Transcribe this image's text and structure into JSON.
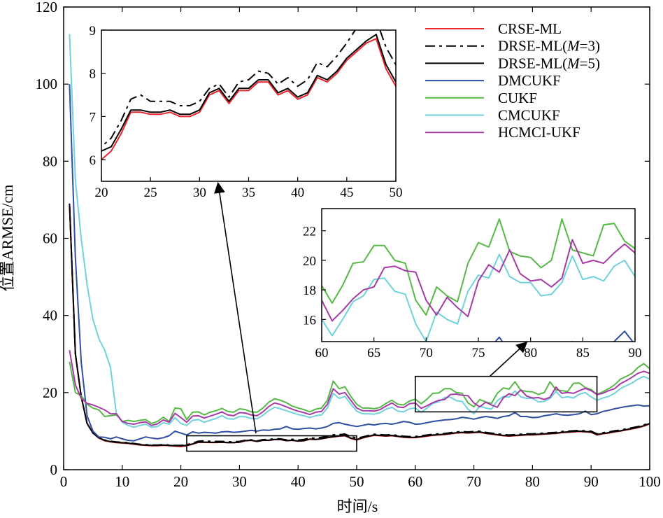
{
  "chart_data": {
    "type": "line",
    "xlabel": "时间/s",
    "ylabel": "位置ARMSE/cm",
    "xlim": [
      0,
      100
    ],
    "ylim": [
      0,
      120
    ],
    "xticks": [
      "0",
      "10",
      "20",
      "30",
      "40",
      "50",
      "60",
      "70",
      "80",
      "90",
      "100"
    ],
    "yticks": [
      "0",
      "20",
      "40",
      "60",
      "80",
      "100",
      "120"
    ],
    "grid": false,
    "legend_position": "top-right",
    "x": [
      1,
      2,
      3,
      4,
      5,
      6,
      7,
      8,
      9,
      10,
      11,
      12,
      13,
      14,
      15,
      16,
      17,
      18,
      19,
      20,
      21,
      22,
      23,
      24,
      25,
      26,
      27,
      28,
      29,
      30,
      31,
      32,
      33,
      34,
      35,
      36,
      37,
      38,
      39,
      40,
      41,
      42,
      43,
      44,
      45,
      46,
      47,
      48,
      49,
      50,
      51,
      52,
      53,
      54,
      55,
      56,
      57,
      58,
      59,
      60,
      61,
      62,
      63,
      64,
      65,
      66,
      67,
      68,
      69,
      70,
      71,
      72,
      73,
      74,
      75,
      76,
      77,
      78,
      79,
      80,
      81,
      82,
      83,
      84,
      85,
      86,
      87,
      88,
      89,
      90,
      91,
      92,
      93,
      94,
      95,
      96,
      97,
      98,
      99,
      100
    ],
    "series": [
      {
        "name": "CRSE-ML",
        "legend_label": "CRSE-ML",
        "color": "#e8262c",
        "dash": "solid",
        "values": [
          69,
          30,
          19,
          12,
          9.5,
          8.2,
          7.5,
          7.2,
          7.0,
          6.9,
          6.8,
          6.6,
          6.4,
          6.3,
          6.2,
          6.2,
          6.3,
          6.2,
          6.1,
          6.0,
          6.2,
          6.6,
          7.1,
          7.1,
          7.05,
          7.05,
          7.1,
          7.0,
          7.0,
          7.1,
          7.5,
          7.6,
          7.3,
          7.6,
          7.6,
          7.8,
          7.8,
          7.5,
          7.6,
          7.4,
          7.5,
          7.9,
          7.8,
          8.0,
          8.3,
          8.5,
          8.7,
          8.8,
          8.1,
          7.7,
          8.2,
          8.6,
          8.9,
          8.8,
          8.7,
          8.8,
          8.6,
          8.4,
          8.3,
          8.3,
          8.5,
          8.7,
          8.9,
          9.0,
          9.1,
          9.3,
          9.5,
          9.6,
          9.5,
          9.6,
          9.7,
          9.4,
          9.2,
          9.0,
          8.8,
          8.7,
          8.8,
          8.9,
          9.0,
          9.0,
          9.1,
          9.2,
          9.3,
          9.4,
          9.6,
          9.7,
          9.8,
          9.9,
          9.8,
          9.7,
          9.0,
          9.3,
          9.5,
          9.8,
          10.0,
          10.3,
          10.6,
          10.9,
          11.3,
          11.9
        ]
      },
      {
        "name": "DRSE-ML(M=3)",
        "legend_label": "DRSE-ML(",
        "legend_italic": "M",
        "legend_suffix": "=3)",
        "color": "#000000",
        "dash": "14,6,4,6",
        "values": [
          69,
          30,
          19,
          12,
          9.6,
          8.4,
          7.7,
          7.4,
          7.2,
          7.1,
          7.0,
          6.8,
          6.6,
          6.5,
          6.4,
          6.4,
          6.5,
          6.4,
          6.3,
          6.3,
          6.5,
          6.9,
          7.4,
          7.5,
          7.35,
          7.35,
          7.35,
          7.25,
          7.25,
          7.35,
          7.65,
          7.75,
          7.45,
          7.8,
          7.85,
          8.05,
          8.0,
          7.75,
          7.9,
          7.7,
          7.85,
          8.25,
          8.15,
          8.4,
          8.7,
          9.05,
          9.1,
          9.25,
          8.6,
          8.2,
          8.5,
          8.9,
          9.2,
          9.1,
          9.0,
          9.1,
          8.9,
          8.7,
          8.6,
          8.6,
          8.8,
          9.0,
          9.2,
          9.3,
          9.4,
          9.6,
          9.8,
          9.9,
          9.8,
          9.9,
          10.0,
          9.7,
          9.5,
          9.3,
          9.1,
          9.0,
          9.1,
          9.2,
          9.3,
          9.3,
          9.4,
          9.5,
          9.6,
          9.7,
          9.9,
          10.0,
          10.1,
          10.2,
          10.1,
          10.0,
          9.3,
          9.6,
          9.8,
          10.1,
          10.3,
          10.6,
          10.9,
          11.2,
          11.6,
          12.2
        ]
      },
      {
        "name": "DRSE-ML(M=5)",
        "legend_label": "DRSE-ML(",
        "legend_italic": "M",
        "legend_suffix": "=5)",
        "color": "#000000",
        "dash": "solid",
        "values": [
          69,
          30,
          19,
          12,
          9.5,
          8.3,
          7.6,
          7.3,
          7.1,
          7.0,
          6.9,
          6.7,
          6.5,
          6.4,
          6.3,
          6.3,
          6.4,
          6.3,
          6.2,
          6.2,
          6.3,
          6.7,
          7.15,
          7.15,
          7.1,
          7.1,
          7.15,
          7.05,
          7.05,
          7.15,
          7.55,
          7.65,
          7.35,
          7.65,
          7.65,
          7.85,
          7.85,
          7.55,
          7.65,
          7.45,
          7.55,
          7.95,
          7.85,
          8.05,
          8.35,
          8.55,
          8.75,
          8.9,
          8.2,
          7.8,
          8.3,
          8.7,
          9.0,
          8.9,
          8.8,
          8.9,
          8.7,
          8.5,
          8.4,
          8.4,
          8.6,
          8.8,
          9.0,
          9.1,
          9.2,
          9.4,
          9.6,
          9.7,
          9.6,
          9.7,
          9.8,
          9.5,
          9.3,
          9.1,
          8.9,
          8.8,
          8.9,
          9.0,
          9.1,
          9.1,
          9.2,
          9.3,
          9.4,
          9.5,
          9.7,
          9.8,
          9.9,
          10.0,
          9.9,
          9.8,
          9.1,
          9.4,
          9.6,
          9.9,
          10.1,
          10.4,
          10.7,
          11.0,
          11.4,
          12.0
        ]
      },
      {
        "name": "DMCUKF",
        "legend_label": "DMCUKF",
        "color": "#2e4ea1",
        "dash": "solid",
        "values": [
          100,
          55,
          28,
          14,
          10,
          8.5,
          8.4,
          8.0,
          8.5,
          8.0,
          7.6,
          7.5,
          8.0,
          8.5,
          8.2,
          8.0,
          8.3,
          8.8,
          10.0,
          9.5,
          9.0,
          9.8,
          9.5,
          9.7,
          9.6,
          9.5,
          9.8,
          9.9,
          9.7,
          9.8,
          10.0,
          10.2,
          10.0,
          10.3,
          10.2,
          10.5,
          10.6,
          11.2,
          10.6,
          10.5,
          10.7,
          10.8,
          10.6,
          10.8,
          11.2,
          12.0,
          12.2,
          11.8,
          11.5,
          11.2,
          11.5,
          11.8,
          11.6,
          11.9,
          12.0,
          11.8,
          12.1,
          12.5,
          12.3,
          11.8,
          11.9,
          12.2,
          12.5,
          12.7,
          12.9,
          13.0,
          13.2,
          13.6,
          13.4,
          13.1,
          13.5,
          13.8,
          13.6,
          13.3,
          13.8,
          14.0,
          14.8,
          13.8,
          13.8,
          13.5,
          13.6,
          14.0,
          14.2,
          14.5,
          14.2,
          14.1,
          14.3,
          14.5,
          15.2,
          14.3,
          14.5,
          15.1,
          15.4,
          15.8,
          16.1,
          16.4,
          16.6,
          16.8,
          16.5,
          16.6
        ]
      },
      {
        "name": "CUKF",
        "legend_label": "CUKF",
        "color": "#56b846",
        "dash": "solid",
        "values": [
          28,
          20,
          19.2,
          17,
          16,
          15.5,
          13.8,
          14.0,
          14.2,
          12.5,
          12.8,
          12.5,
          12.8,
          13.0,
          12.0,
          12.5,
          13.6,
          12.5,
          16.0,
          15.8,
          13.0,
          14.9,
          15.0,
          14.2,
          14.9,
          15.3,
          15.9,
          15.1,
          14.9,
          15.8,
          15.6,
          15.0,
          14.9,
          16.0,
          17.5,
          18.4,
          18.0,
          17.4,
          16.5,
          16.0,
          15.6,
          15.0,
          15.7,
          16.0,
          18.0,
          23.0,
          21.0,
          21.5,
          19.0,
          17.0,
          16.0,
          16.0,
          15.8,
          16.2,
          17.2,
          18.0,
          17.0,
          16.8,
          17.8,
          18.3,
          17.1,
          18.3,
          19.8,
          19.9,
          21.0,
          21.0,
          20.0,
          19.8,
          17.3,
          16.3,
          18.2,
          17.6,
          17.2,
          19.8,
          21.2,
          20.9,
          22.8,
          20.6,
          20.3,
          20.2,
          19.5,
          20.0,
          22.8,
          20.7,
          20.5,
          20.3,
          22.4,
          22.5,
          21.3,
          20.8,
          19.5,
          20.2,
          21.0,
          22.0,
          23.5,
          24.2,
          25.0,
          26.5,
          27.5,
          26.2
        ]
      },
      {
        "name": "CMCUKF",
        "legend_label": "CMCUKF",
        "color": "#6fd2dd",
        "dash": "solid",
        "values": [
          113,
          75,
          60,
          48,
          39,
          34,
          31,
          26.5,
          14.5,
          12.3,
          11.5,
          11.0,
          11.5,
          11.8,
          11.0,
          11.2,
          12.2,
          11.8,
          13.5,
          12.0,
          11.5,
          12.8,
          13.0,
          12.3,
          12.8,
          13.3,
          14.0,
          13.2,
          13.1,
          13.8,
          13.7,
          13.3,
          13.2,
          14.1,
          15.3,
          16.2,
          15.8,
          15.3,
          14.8,
          14.3,
          14.0,
          13.5,
          14.0,
          14.2,
          16.0,
          19.8,
          18.5,
          19.0,
          17.0,
          15.2,
          14.5,
          14.5,
          14.4,
          14.8,
          15.7,
          16.2,
          15.2,
          15.0,
          15.8,
          16.0,
          14.9,
          16.0,
          17.2,
          17.6,
          18.7,
          18.8,
          17.9,
          17.7,
          15.7,
          14.5,
          16.5,
          16.0,
          15.7,
          17.9,
          19.0,
          18.8,
          20.4,
          18.9,
          18.5,
          18.5,
          17.6,
          17.7,
          18.5,
          20.3,
          18.7,
          18.9,
          18.6,
          19.6,
          20.0,
          18.9,
          18.0,
          18.6,
          19.0,
          19.8,
          21.0,
          21.8,
          22.5,
          23.5,
          24.2,
          23.5
        ]
      },
      {
        "name": "HCMCI-UKF",
        "legend_label": "HCMCI-UKF",
        "color": "#a63ba8",
        "dash": "solid",
        "values": [
          31,
          22,
          18.5,
          17.2,
          16.8,
          16.2,
          15.5,
          14.5,
          14.5,
          12.5,
          12.0,
          11.8,
          12.2,
          12.4,
          11.5,
          11.9,
          12.9,
          12.3,
          14.6,
          13.5,
          12.3,
          13.9,
          14.0,
          13.4,
          13.9,
          14.4,
          15.0,
          14.2,
          14.0,
          14.8,
          14.7,
          14.2,
          14.0,
          15.0,
          16.4,
          17.3,
          16.9,
          16.3,
          15.7,
          15.2,
          14.8,
          14.3,
          14.9,
          15.1,
          17.0,
          21.0,
          19.6,
          20.0,
          18.0,
          16.0,
          15.3,
          15.3,
          15.2,
          15.6,
          16.5,
          17.3,
          16.3,
          16.1,
          17.1,
          17.3,
          15.9,
          16.6,
          17.4,
          18.0,
          18.2,
          19.5,
          19.6,
          19.3,
          19.2,
          17.3,
          16.3,
          17.5,
          16.8,
          16.2,
          18.6,
          19.7,
          19.2,
          20.7,
          19.1,
          18.6,
          18.7,
          18.2,
          18.8,
          21.4,
          19.8,
          20.0,
          19.8,
          20.5,
          21.1,
          20.5,
          19.5,
          19.8,
          20.5,
          21.0,
          22.3,
          23.1,
          24.0,
          25.0,
          25.5,
          25.0
        ]
      }
    ],
    "insets": [
      {
        "xlim": [
          20,
          50
        ],
        "ylim": [
          5.5,
          9
        ],
        "xticks": [
          "20",
          "25",
          "30",
          "35",
          "40",
          "45",
          "50"
        ],
        "yticks": [
          "6",
          "7",
          "8",
          "9"
        ],
        "series_names": [
          "CRSE-ML",
          "DRSE-ML(M=3)",
          "DRSE-ML(M=5)",
          "DMCUKF"
        ]
      },
      {
        "xlim": [
          60,
          90
        ],
        "ylim": [
          14.5,
          23.5
        ],
        "xticks": [
          "60",
          "65",
          "70",
          "75",
          "80",
          "85",
          "90"
        ],
        "yticks": [
          "16",
          "18",
          "20",
          "22"
        ],
        "series_names": [
          "DMCUKF",
          "CUKF",
          "CMCUKF",
          "HCMCI-UKF"
        ]
      }
    ],
    "zoom_regions": [
      {
        "xlim": [
          21,
          50
        ],
        "ylim": [
          4.8,
          8.8
        ]
      },
      {
        "xlim": [
          60,
          91
        ],
        "ylim": [
          15,
          24.2
        ]
      }
    ]
  }
}
